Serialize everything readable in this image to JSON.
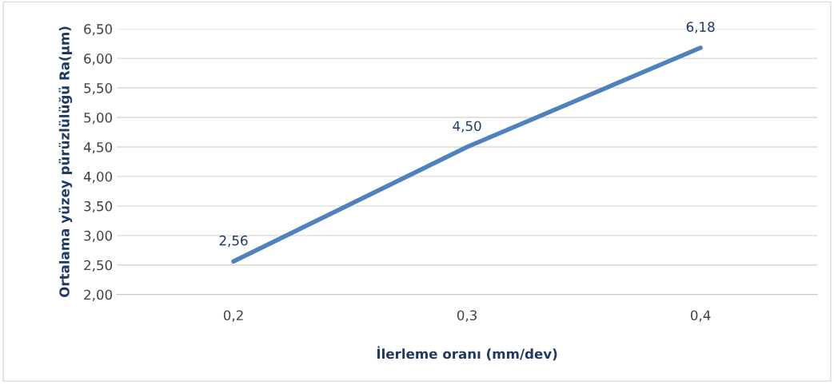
{
  "chart_data": {
    "type": "line",
    "xlabel": "İlerleme oranı (mm/dev)",
    "ylabel": "Ortalama yüzey pürüzlülüğü Ra(µm)",
    "categories": [
      "0,2",
      "0,3",
      "0,4"
    ],
    "series": [
      {
        "color": "#4f81bd",
        "values": [
          2.56,
          4.5,
          6.18
        ],
        "value_labels": [
          "2,56",
          "4,50",
          "6,18"
        ]
      }
    ],
    "ylim": [
      2.0,
      6.5
    ],
    "yticks": [
      {
        "value": 2.0,
        "label": "2,00"
      },
      {
        "value": 2.5,
        "label": "2,50"
      },
      {
        "value": 3.0,
        "label": "3,00"
      },
      {
        "value": 3.5,
        "label": "3,50"
      },
      {
        "value": 4.0,
        "label": "4,00"
      },
      {
        "value": 4.5,
        "label": "4,50"
      },
      {
        "value": 5.0,
        "label": "5,00"
      },
      {
        "value": 5.5,
        "label": "5,50"
      },
      {
        "value": 6.0,
        "label": "6,00"
      },
      {
        "value": 6.5,
        "label": "6,50"
      }
    ],
    "grid": "y",
    "legend": false,
    "marker": "none",
    "line_style": "solid"
  }
}
